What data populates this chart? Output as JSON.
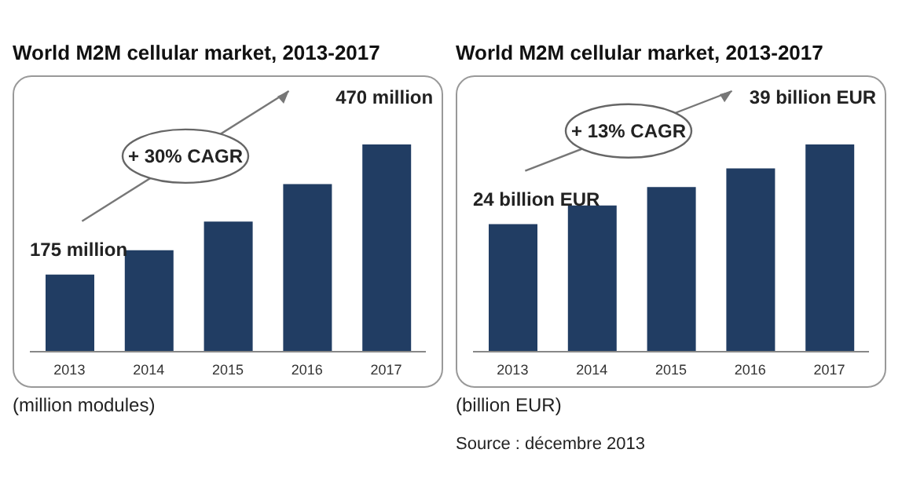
{
  "chart_data": [
    {
      "type": "bar",
      "title": "World M2M cellular market, 2013-2017",
      "categories": [
        "2013",
        "2014",
        "2015",
        "2016",
        "2017"
      ],
      "values": [
        175,
        230,
        295,
        380,
        470
      ],
      "color": "#213d63",
      "value_labels": [
        "175 million",
        null,
        null,
        null,
        "470 million"
      ],
      "annotations": [
        "+ 30% CAGR",
        "(million modules)"
      ]
    },
    {
      "type": "bar",
      "title": "World M2M cellular market, 2013-2017",
      "categories": [
        "2013",
        "2014",
        "2015",
        "2016",
        "2017"
      ],
      "values": [
        24,
        27.5,
        31,
        34.5,
        39
      ],
      "color": "#213d63",
      "value_labels": [
        "24 billion EUR",
        null,
        null,
        null,
        "39 billion EUR"
      ],
      "annotations": [
        "+ 13% CAGR",
        "(billion EUR)",
        "Source : décembre 2013"
      ]
    }
  ]
}
